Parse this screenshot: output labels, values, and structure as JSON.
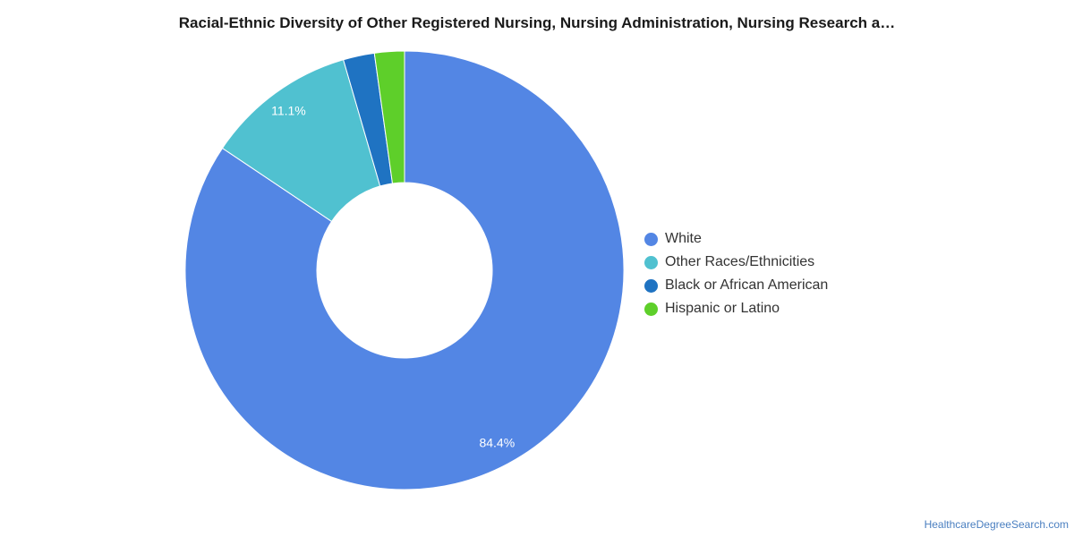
{
  "chart_data": {
    "type": "pie",
    "title": "Racial-Ethnic Diversity of Other Registered Nursing, Nursing Administration, Nursing Research a…",
    "donut": true,
    "legend_position": "right",
    "slices": [
      {
        "name": "White",
        "value": 84.4,
        "label": "84.4%",
        "color": "#5386e4"
      },
      {
        "name": "Other Races/Ethnicities",
        "value": 11.1,
        "label": "11.1%",
        "color": "#50c1d0"
      },
      {
        "name": "Black or African American",
        "value": 2.3,
        "label": "",
        "color": "#1f73c2"
      },
      {
        "name": "Hispanic or Latino",
        "value": 2.2,
        "label": "",
        "color": "#5ecf2a"
      }
    ]
  },
  "source": "HealthcareDegreeSearch.com"
}
